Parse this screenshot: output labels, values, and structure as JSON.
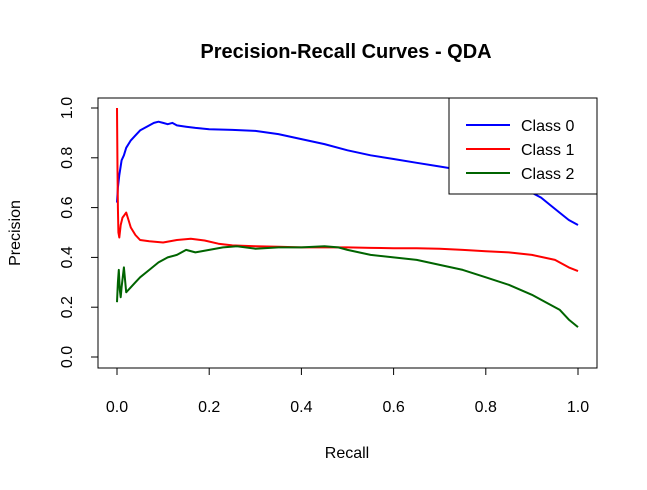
{
  "chart_data": {
    "type": "line",
    "title": "Precision-Recall Curves - QDA",
    "xlabel": "Recall",
    "ylabel": "Precision",
    "xlim": [
      0,
      1
    ],
    "ylim": [
      0,
      1
    ],
    "xticks": [
      "0.0",
      "0.2",
      "0.4",
      "0.6",
      "0.8",
      "1.0"
    ],
    "yticks": [
      "0.0",
      "0.2",
      "0.4",
      "0.6",
      "0.8",
      "1.0"
    ],
    "legend_position": "top-right",
    "grid": false,
    "series": [
      {
        "name": "Class 0",
        "color": "#0000ff",
        "x": [
          0.0,
          0.002,
          0.005,
          0.01,
          0.015,
          0.02,
          0.03,
          0.04,
          0.05,
          0.06,
          0.07,
          0.08,
          0.09,
          0.1,
          0.11,
          0.12,
          0.13,
          0.15,
          0.17,
          0.2,
          0.25,
          0.3,
          0.35,
          0.4,
          0.45,
          0.5,
          0.55,
          0.6,
          0.65,
          0.7,
          0.75,
          0.8,
          0.85,
          0.9,
          0.92,
          0.94,
          0.96,
          0.98,
          1.0
        ],
        "y": [
          0.62,
          0.68,
          0.73,
          0.79,
          0.81,
          0.84,
          0.87,
          0.89,
          0.91,
          0.92,
          0.93,
          0.94,
          0.945,
          0.94,
          0.935,
          0.94,
          0.93,
          0.925,
          0.92,
          0.915,
          0.912,
          0.908,
          0.895,
          0.875,
          0.855,
          0.83,
          0.81,
          0.795,
          0.78,
          0.765,
          0.75,
          0.73,
          0.7,
          0.66,
          0.64,
          0.61,
          0.58,
          0.55,
          0.53
        ]
      },
      {
        "name": "Class 1",
        "color": "#ff0000",
        "x": [
          0.0,
          0.001,
          0.002,
          0.003,
          0.005,
          0.008,
          0.012,
          0.016,
          0.02,
          0.025,
          0.03,
          0.04,
          0.05,
          0.07,
          0.1,
          0.13,
          0.16,
          0.19,
          0.22,
          0.25,
          0.3,
          0.35,
          0.4,
          0.45,
          0.5,
          0.55,
          0.6,
          0.65,
          0.7,
          0.75,
          0.8,
          0.85,
          0.9,
          0.95,
          0.98,
          1.0
        ],
        "y": [
          1.0,
          0.75,
          0.6,
          0.5,
          0.48,
          0.53,
          0.56,
          0.57,
          0.58,
          0.55,
          0.52,
          0.49,
          0.47,
          0.465,
          0.46,
          0.47,
          0.475,
          0.468,
          0.455,
          0.448,
          0.445,
          0.443,
          0.44,
          0.44,
          0.44,
          0.438,
          0.437,
          0.437,
          0.435,
          0.43,
          0.425,
          0.42,
          0.41,
          0.39,
          0.36,
          0.345
        ]
      },
      {
        "name": "Class 2",
        "color": "#006400",
        "x": [
          0.0,
          0.002,
          0.004,
          0.006,
          0.008,
          0.01,
          0.015,
          0.02,
          0.03,
          0.04,
          0.05,
          0.07,
          0.09,
          0.11,
          0.13,
          0.15,
          0.17,
          0.2,
          0.23,
          0.26,
          0.3,
          0.35,
          0.4,
          0.45,
          0.48,
          0.5,
          0.55,
          0.6,
          0.65,
          0.7,
          0.75,
          0.8,
          0.85,
          0.9,
          0.93,
          0.96,
          0.98,
          1.0
        ],
        "y": [
          0.22,
          0.3,
          0.35,
          0.27,
          0.24,
          0.28,
          0.36,
          0.26,
          0.28,
          0.3,
          0.32,
          0.35,
          0.38,
          0.4,
          0.41,
          0.43,
          0.42,
          0.43,
          0.44,
          0.445,
          0.435,
          0.44,
          0.44,
          0.445,
          0.44,
          0.43,
          0.41,
          0.4,
          0.39,
          0.37,
          0.35,
          0.32,
          0.29,
          0.25,
          0.22,
          0.19,
          0.15,
          0.12
        ]
      }
    ]
  }
}
